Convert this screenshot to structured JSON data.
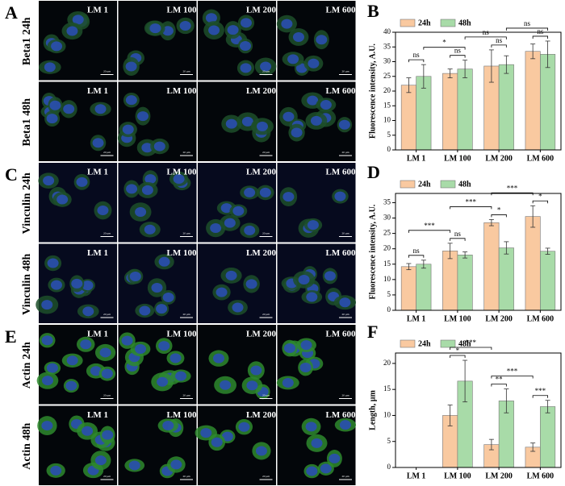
{
  "figure": {
    "columns": [
      "LM 1",
      "LM 100",
      "LM 200",
      "LM 600"
    ],
    "scale_bar": "20 µm",
    "image_panels": [
      {
        "letter": "A",
        "rows": [
          "Beta1 24h",
          "Beta1 48h"
        ]
      },
      {
        "letter": "C",
        "rows": [
          "Vinculin 24h",
          "Vinculin 48h"
        ]
      },
      {
        "letter": "E",
        "rows": [
          "Actin 24h",
          "Actin 48h"
        ]
      }
    ]
  },
  "chart_data": [
    {
      "type": "bar",
      "panel": "B",
      "y_label": "Fluorescence intensity, A.U.",
      "categories": [
        "LM 1",
        "LM 100",
        "LM 200",
        "LM 600"
      ],
      "series": [
        {
          "name": "24h",
          "color": "#f9c9a0",
          "values": [
            22,
            26,
            28.5,
            33.5
          ],
          "errors": [
            2.5,
            1.5,
            5.5,
            2.5
          ]
        },
        {
          "name": "48h",
          "color": "#a8dba8",
          "values": [
            25,
            27.5,
            29,
            32.5
          ],
          "errors": [
            4,
            3,
            3,
            4.5
          ]
        }
      ],
      "ylim": [
        0,
        40
      ],
      "yticks": [
        0,
        5,
        10,
        15,
        20,
        25,
        30,
        35,
        40
      ],
      "legend": "top-left",
      "comparisons": [
        {
          "text": "ns",
          "a": [
            0,
            0
          ],
          "b": [
            0,
            1
          ]
        },
        {
          "text": "ns",
          "a": [
            1,
            0
          ],
          "b": [
            1,
            1
          ]
        },
        {
          "text": "ns",
          "a": [
            2,
            0
          ],
          "b": [
            2,
            1
          ]
        },
        {
          "text": "ns",
          "a": [
            3,
            0
          ],
          "b": [
            3,
            1
          ]
        },
        {
          "text": "*",
          "a": [
            0,
            1
          ],
          "b": [
            1,
            1
          ]
        },
        {
          "text": "ns",
          "a": [
            1,
            1
          ],
          "b": [
            2,
            1
          ]
        },
        {
          "text": "ns",
          "a": [
            2,
            1
          ],
          "b": [
            3,
            1
          ]
        }
      ]
    },
    {
      "type": "bar",
      "panel": "D",
      "y_label": "Fluorescence intensity, A.U.",
      "categories": [
        "LM 1",
        "LM 100",
        "LM 200",
        "LM 600"
      ],
      "series": [
        {
          "name": "24h",
          "color": "#f9c9a0",
          "values": [
            14.2,
            19.3,
            28.5,
            30.5
          ],
          "errors": [
            1,
            2.5,
            1,
            3.5
          ]
        },
        {
          "name": "48h",
          "color": "#a8dba8",
          "values": [
            15,
            18,
            20.3,
            19.2
          ],
          "errors": [
            1.3,
            1,
            2,
            1
          ]
        }
      ],
      "ylim": [
        0,
        38
      ],
      "yticks": [
        0,
        5,
        10,
        15,
        20,
        25,
        30,
        35
      ],
      "legend": "top-left",
      "comparisons": [
        {
          "text": "ns",
          "a": [
            0,
            0
          ],
          "b": [
            0,
            1
          ]
        },
        {
          "text": "ns",
          "a": [
            1,
            0
          ],
          "b": [
            1,
            1
          ]
        },
        {
          "text": "*",
          "a": [
            2,
            0
          ],
          "b": [
            2,
            1
          ]
        },
        {
          "text": "*",
          "a": [
            3,
            0
          ],
          "b": [
            3,
            1
          ]
        },
        {
          "text": "***",
          "a": [
            0,
            0
          ],
          "b": [
            1,
            0
          ]
        },
        {
          "text": "***",
          "a": [
            1,
            0
          ],
          "b": [
            2,
            0
          ]
        },
        {
          "text": "***",
          "a": [
            2,
            0
          ],
          "b": [
            3,
            0
          ]
        }
      ]
    },
    {
      "type": "bar",
      "panel": "F",
      "y_label": "Length, µm",
      "categories": [
        "LM 1",
        "LM 100",
        "LM 200",
        "LM 600"
      ],
      "series": [
        {
          "name": "24h",
          "color": "#f9c9a0",
          "values": [
            0,
            10,
            4.4,
            3.9
          ],
          "errors": [
            0,
            2,
            1,
            0.8
          ]
        },
        {
          "name": "48h",
          "color": "#a8dba8",
          "values": [
            0,
            16.6,
            12.8,
            11.7
          ],
          "errors": [
            0,
            4,
            2.3,
            1.2
          ]
        }
      ],
      "ylim": [
        0,
        22
      ],
      "yticks": [
        0,
        5,
        10,
        15,
        20
      ],
      "legend": "top-left",
      "comparisons": [
        {
          "text": "*",
          "a": [
            1,
            0
          ],
          "b": [
            1,
            1
          ]
        },
        {
          "text": "**",
          "a": [
            2,
            0
          ],
          "b": [
            2,
            1
          ]
        },
        {
          "text": "***",
          "a": [
            3,
            0
          ],
          "b": [
            3,
            1
          ]
        },
        {
          "text": "***",
          "a": [
            1,
            0
          ],
          "b": [
            2,
            0
          ]
        },
        {
          "text": "***",
          "a": [
            2,
            0
          ],
          "b": [
            3,
            0
          ]
        }
      ]
    }
  ]
}
